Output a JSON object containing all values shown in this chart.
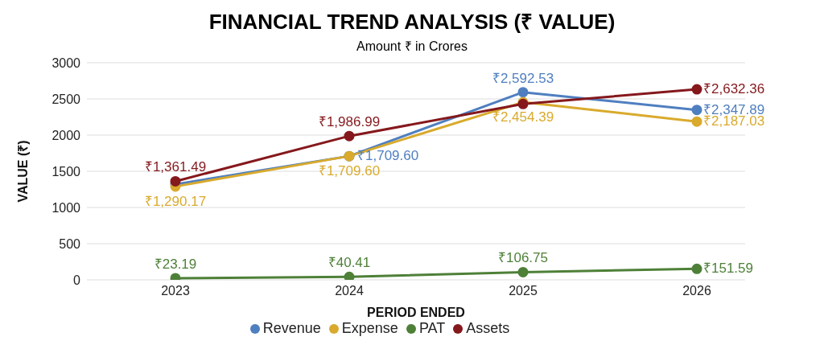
{
  "chart_data": {
    "type": "line",
    "title": "FINANCIAL TREND ANALYSIS (₹ VALUE)",
    "subtitle": "Amount ₹ in Crores",
    "xlabel": "PERIOD ENDED",
    "ylabel": "VALUE (₹)",
    "categories": [
      "2023",
      "2024",
      "2025",
      "2026"
    ],
    "series": [
      {
        "name": "Revenue",
        "color": "#4f7fc0",
        "values": [
          1320,
          1709.6,
          2592.53,
          2347.89
        ],
        "value_labels": [
          null,
          "₹1,709.60",
          "₹2,592.53",
          "₹2,347.89"
        ]
      },
      {
        "name": "Expense",
        "color": "#d9aa2c",
        "values": [
          1290.17,
          1709.6,
          2454.39,
          2187.03
        ],
        "value_labels": [
          "₹1,290.17",
          "₹1,709.60",
          "₹2,454.39",
          "₹2,187.03"
        ]
      },
      {
        "name": "PAT",
        "color": "#4e8038",
        "values": [
          23.19,
          40.41,
          106.75,
          151.59
        ],
        "value_labels": [
          "₹23.19",
          "₹40.41",
          "₹106.75",
          "₹151.59"
        ]
      },
      {
        "name": "Assets",
        "color": "#85181c",
        "values": [
          1361.49,
          1986.99,
          2430,
          2632.36
        ],
        "value_labels": [
          "₹1,361.49",
          "₹1,986.99",
          null,
          "₹2,632.36"
        ]
      }
    ],
    "ylim": [
      0,
      3000
    ],
    "yticks": [
      0,
      500,
      1000,
      1500,
      2000,
      2500,
      3000
    ],
    "grid": "y",
    "legend": "bottom",
    "marker": "circle",
    "line_style": "solid"
  }
}
